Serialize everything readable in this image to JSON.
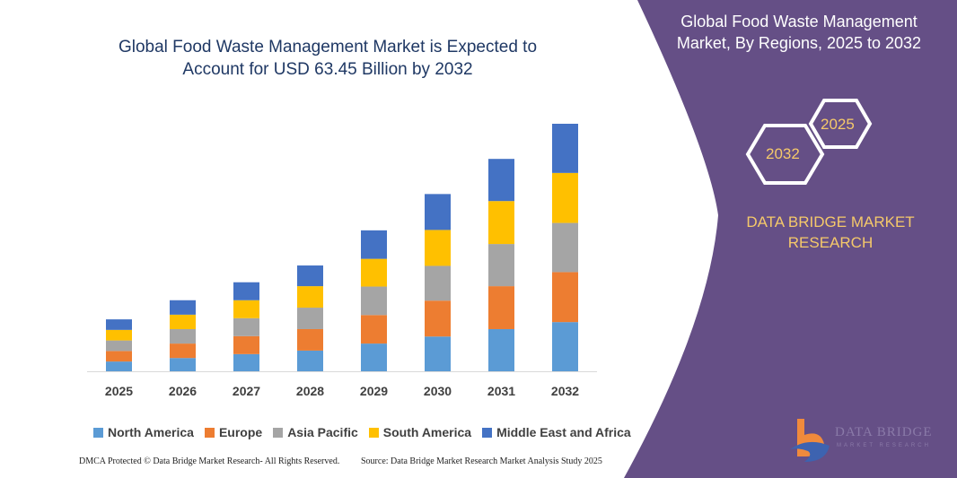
{
  "title": "Global Food Waste Management Market is Expected to Account for USD 63.45 Billion by 2032",
  "panel": {
    "title": "Global Food Waste Management Market, By Regions, 2025 to 2032",
    "hex_left": "2032",
    "hex_right": "2025",
    "brand": "DATA BRIDGE MARKET RESEARCH",
    "logo_text": "DATA BRIDGE",
    "logo_sub": "MARKET RESEARCH",
    "bg_color": "#654f86",
    "accent": "#f5c96a"
  },
  "footer": {
    "left": "DMCA Protected © Data Bridge Market Research- All Rights Reserved.",
    "right": "Source: Data Bridge Market Research Market Analysis Study 2025"
  },
  "chart_data": {
    "type": "bar",
    "stacked": true,
    "title": "Global Food Waste Management Market is Expected to Account for USD 63.45 Billion by 2032",
    "xlabel": "",
    "ylabel": "",
    "grid": false,
    "legend": "bottom",
    "categories": [
      "2025",
      "2026",
      "2027",
      "2028",
      "2029",
      "2030",
      "2031",
      "2032"
    ],
    "series": [
      {
        "name": "North America",
        "color": "#5b9bd5",
        "values": [
          2.5,
          3.4,
          4.4,
          5.3,
          7.1,
          8.9,
          10.8,
          12.6
        ]
      },
      {
        "name": "Europe",
        "color": "#ed7d31",
        "values": [
          2.7,
          3.7,
          4.6,
          5.5,
          7.3,
          9.2,
          11.0,
          12.8
        ]
      },
      {
        "name": "Asia Pacific",
        "color": "#a5a5a5",
        "values": [
          2.7,
          3.7,
          4.6,
          5.5,
          7.3,
          8.9,
          10.8,
          12.6
        ]
      },
      {
        "name": "South America",
        "color": "#ffc000",
        "values": [
          2.7,
          3.7,
          4.6,
          5.5,
          7.1,
          9.2,
          11.0,
          12.8
        ]
      },
      {
        "name": "Middle East and Africa",
        "color": "#4472c4",
        "values": [
          2.7,
          3.7,
          4.6,
          5.3,
          7.3,
          9.2,
          10.8,
          12.6
        ]
      }
    ]
  }
}
